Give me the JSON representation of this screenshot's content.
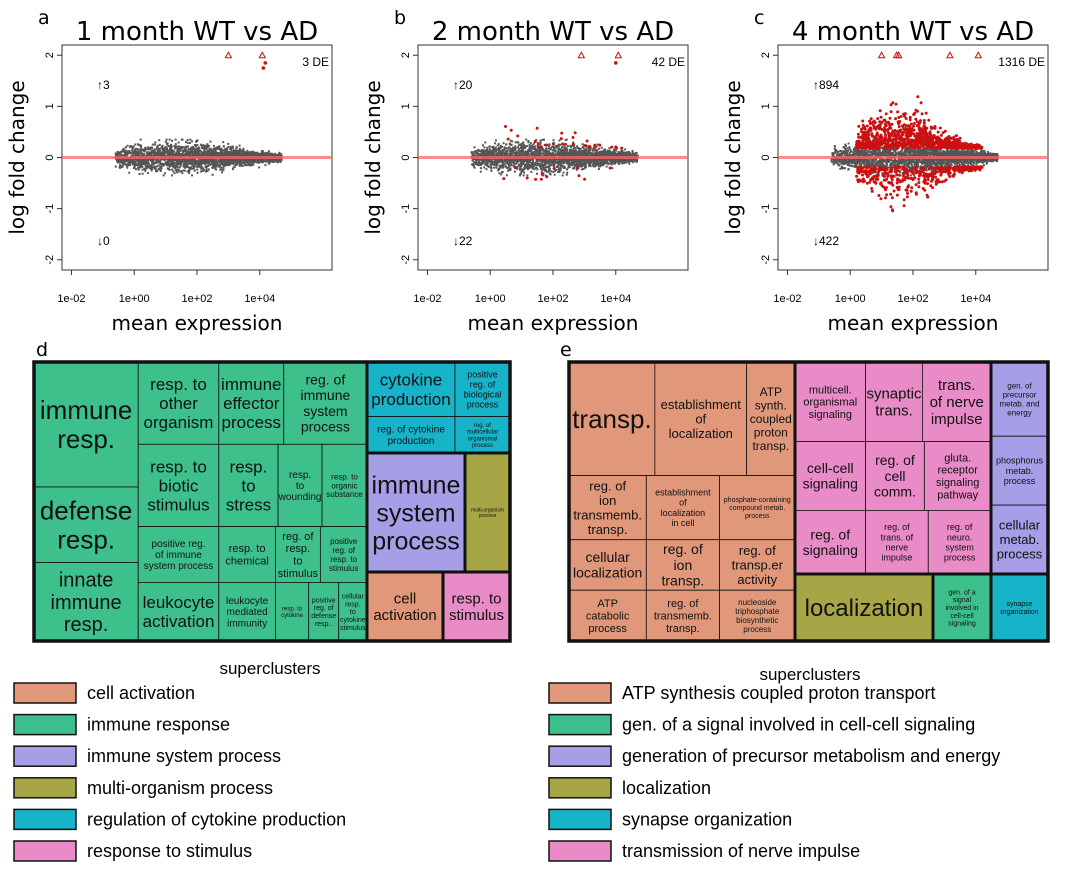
{
  "chart_data": [
    {
      "type": "scatter",
      "panel": "a",
      "title": "1 month WT vs AD",
      "xlabel": "mean expression",
      "ylabel": "log fold change",
      "x_scale": "log10",
      "xlim": [
        0.005,
        2000000
      ],
      "ylim": [
        -2.2,
        2.2
      ],
      "x_ticks": [
        0.01,
        1,
        100,
        10000
      ],
      "x_tick_labels": [
        "1e-02",
        "1e+00",
        "1e+02",
        "1e+04"
      ],
      "y_ticks": [
        -2,
        -1,
        0,
        1,
        2
      ],
      "y_tick_labels": [
        "-2",
        "-1",
        "0",
        "1",
        "2"
      ],
      "de_count_label": "3 DE",
      "up_label": "↑3",
      "down_label": "↓0",
      "de_points": [
        {
          "x": 1000,
          "y": 2.0,
          "marker": "triangle"
        },
        {
          "x": 12000,
          "y": 2.0,
          "marker": "triangle"
        },
        {
          "x": 13000,
          "y": 1.75
        },
        {
          "x": 15000,
          "y": 1.85
        }
      ],
      "spread": 0.28,
      "de_cloud": 0,
      "colors": {
        "ns": "#555555",
        "de": "#cc1111",
        "baseline": "#ff6666"
      }
    },
    {
      "type": "scatter",
      "panel": "b",
      "title": "2 month WT vs AD",
      "xlabel": "mean expression",
      "ylabel": "log fold change",
      "x_scale": "log10",
      "xlim": [
        0.005,
        2000000
      ],
      "ylim": [
        -2.2,
        2.2
      ],
      "x_ticks": [
        0.01,
        1,
        100,
        10000
      ],
      "x_tick_labels": [
        "1e-02",
        "1e+00",
        "1e+02",
        "1e+04"
      ],
      "y_ticks": [
        -2,
        -1,
        0,
        1,
        2
      ],
      "y_tick_labels": [
        "-2",
        "-1",
        "0",
        "1",
        "2"
      ],
      "de_count_label": "42 DE",
      "up_label": "↑20",
      "down_label": "↓22",
      "de_points": [
        {
          "x": 800,
          "y": 2.0,
          "marker": "triangle"
        },
        {
          "x": 12000,
          "y": 2.0,
          "marker": "triangle"
        },
        {
          "x": 10000,
          "y": 1.85
        }
      ],
      "spread": 0.3,
      "de_cloud": 40,
      "colors": {
        "ns": "#555555",
        "de": "#cc1111",
        "baseline": "#ff6666"
      }
    },
    {
      "type": "scatter",
      "panel": "c",
      "title": "4 month WT vs AD",
      "xlabel": "mean expression",
      "ylabel": "log fold change",
      "x_scale": "log10",
      "xlim": [
        0.005,
        2000000
      ],
      "ylim": [
        -2.2,
        2.2
      ],
      "x_ticks": [
        0.01,
        1,
        100,
        10000
      ],
      "x_tick_labels": [
        "1e-02",
        "1e+00",
        "1e+02",
        "1e+04"
      ],
      "y_ticks": [
        -2,
        -1,
        0,
        1,
        2
      ],
      "y_tick_labels": [
        "-2",
        "-1",
        "0",
        "1",
        "2"
      ],
      "de_count_label": "1316 DE",
      "up_label": "↑894",
      "down_label": "↓422",
      "de_points": [
        {
          "x": 10,
          "y": 2.0,
          "marker": "triangle"
        },
        {
          "x": 30,
          "y": 2.0,
          "marker": "triangle"
        },
        {
          "x": 35,
          "y": 2.0,
          "marker": "triangle"
        },
        {
          "x": 1500,
          "y": 2.0,
          "marker": "triangle"
        },
        {
          "x": 12000,
          "y": 2.0,
          "marker": "triangle"
        }
      ],
      "spread": 0.3,
      "de_cloud": 1300,
      "colors": {
        "ns": "#555555",
        "de": "#cc1111",
        "baseline": "#ff6666"
      }
    },
    {
      "type": "treemap",
      "panel": "d",
      "legend_title": "superclusters",
      "legend": [
        {
          "label": "cell activation",
          "color": "#e1987a"
        },
        {
          "label": "immune response",
          "color": "#3ec08c"
        },
        {
          "label": "immune system process",
          "color": "#a79ee8"
        },
        {
          "label": "multi-organism process",
          "color": "#a6a646"
        },
        {
          "label": "regulation of cytokine production",
          "color": "#17b3c9"
        },
        {
          "label": "response to stimulus",
          "color": "#e98bc7"
        }
      ],
      "tiles": [
        {
          "label": "immune resp.",
          "cluster": 1,
          "u": [
            0.0,
            0.0,
            0.313,
            0.448
          ],
          "fs": 26
        },
        {
          "label": "defense resp.",
          "cluster": 1,
          "u": [
            0.0,
            0.448,
            0.313,
            0.719
          ],
          "fs": 26
        },
        {
          "label": "innate immune resp.",
          "cluster": 1,
          "u": [
            0.0,
            0.719,
            0.313,
            1.0
          ],
          "fs": 20
        },
        {
          "label": "resp. to other organism",
          "cluster": 1,
          "u": [
            0.313,
            0.0,
            0.555,
            0.295
          ],
          "fs": 17
        },
        {
          "label": "immune effector process",
          "cluster": 1,
          "u": [
            0.555,
            0.0,
            0.75,
            0.295
          ],
          "fs": 17
        },
        {
          "label": "reg. of immune system process",
          "cluster": 1,
          "u": [
            0.75,
            0.0,
            1.0,
            0.295
          ],
          "fs": 14
        },
        {
          "label": "resp. to biotic stimulus",
          "cluster": 1,
          "u": [
            0.313,
            0.295,
            0.555,
            0.59
          ],
          "fs": 17
        },
        {
          "label": "resp. to stress",
          "cluster": 1,
          "u": [
            0.555,
            0.295,
            0.733,
            0.59
          ],
          "fs": 17
        },
        {
          "label": "resp. to wounding",
          "cluster": 1,
          "u": [
            0.733,
            0.295,
            0.865,
            0.59
          ],
          "fs": 10
        },
        {
          "label": "resp. to organic substance",
          "cluster": 1,
          "u": [
            0.865,
            0.295,
            1.0,
            0.59
          ],
          "fs": 8
        },
        {
          "label": "positive reg. of immune system process",
          "cluster": 1,
          "u": [
            0.313,
            0.59,
            0.555,
            0.79
          ],
          "fs": 10
        },
        {
          "label": "leukocyte activation",
          "cluster": 1,
          "u": [
            0.313,
            0.79,
            0.555,
            1.0
          ],
          "fs": 17
        },
        {
          "label": "resp. to chemical",
          "cluster": 1,
          "u": [
            0.555,
            0.59,
            0.725,
            0.79
          ],
          "fs": 11
        },
        {
          "label": "reg. of resp. to stimulus",
          "cluster": 1,
          "u": [
            0.725,
            0.59,
            0.86,
            0.79
          ],
          "fs": 11
        },
        {
          "label": "positive reg. of resp. to stimulus",
          "cluster": 1,
          "u": [
            0.86,
            0.59,
            1.0,
            0.79
          ],
          "fs": 8
        },
        {
          "label": "leukocyte mediated immunity",
          "cluster": 1,
          "u": [
            0.555,
            0.79,
            0.725,
            1.0
          ],
          "fs": 10
        },
        {
          "label": "resp. to cytokine",
          "cluster": 1,
          "u": [
            0.725,
            0.79,
            0.825,
            1.0
          ],
          "fs": 6
        },
        {
          "label": "positive reg. of defense resp..",
          "cluster": 1,
          "u": [
            0.825,
            0.79,
            0.915,
            1.0
          ],
          "fs": 7
        },
        {
          "label": "cellular resp. to cytokine stimulus",
          "cluster": 1,
          "u": [
            0.915,
            0.79,
            1.0,
            1.0
          ],
          "fs": 7
        },
        {
          "label": "cytokine production",
          "cluster": 4,
          "u": [
            0.0,
            0.0,
            0.615,
            0.6
          ],
          "fs": 17
        },
        {
          "label": "positive reg. of biological process",
          "cluster": 4,
          "u": [
            0.615,
            0.0,
            1.0,
            0.6
          ],
          "fs": 9
        },
        {
          "label": "reg. of cytokine production",
          "cluster": 4,
          "u": [
            0.0,
            0.6,
            0.615,
            1.0
          ],
          "fs": 10
        },
        {
          "label": "reg. of multicellular organismal process",
          "cluster": 4,
          "u": [
            0.615,
            0.6,
            1.0,
            1.0
          ],
          "fs": 6
        },
        {
          "label": "cell activation",
          "cluster": 0,
          "u": [
            0.0,
            0.0,
            1.0,
            1.0
          ],
          "fs": 15
        },
        {
          "label": "resp. to stimulus",
          "cluster": 5,
          "u": [
            0.0,
            0.0,
            1.0,
            1.0
          ],
          "fs": 15
        },
        {
          "label": "immune system process",
          "cluster": 2,
          "u": [
            0.0,
            0.0,
            1.0,
            1.0
          ],
          "fs": 25
        },
        {
          "label": "multi-organism process",
          "cluster": 3,
          "u": [
            0.0,
            0.0,
            1.0,
            1.0
          ],
          "fs": 5
        }
      ]
    },
    {
      "type": "treemap",
      "panel": "e",
      "legend_title": "superclusters",
      "legend": [
        {
          "label": "ATP synthesis coupled proton transport",
          "color": "#e1987a"
        },
        {
          "label": "gen. of a signal involved in cell-cell signaling",
          "color": "#3ec08c"
        },
        {
          "label": "generation of precursor metabolism and energy",
          "color": "#a79ee8"
        },
        {
          "label": "localization",
          "color": "#a6a646"
        },
        {
          "label": "synapse organization",
          "color": "#17b3c9"
        },
        {
          "label": "transmission of nerve impulse",
          "color": "#e98bc7"
        }
      ],
      "tiles": [
        {
          "label": "transp.",
          "cluster": 0,
          "u": [
            0.0,
            0.0,
            0.38,
            0.407
          ],
          "fs": 26
        },
        {
          "label": "establishment of localization",
          "cluster": 0,
          "u": [
            0.38,
            0.0,
            0.786,
            0.407
          ],
          "fs": 13
        },
        {
          "label": "ATP synth. coupled proton transp.",
          "cluster": 0,
          "u": [
            0.786,
            0.0,
            1.0,
            0.407
          ],
          "fs": 12
        },
        {
          "label": "reg. of ion transmemb. transp.",
          "cluster": 0,
          "u": [
            0.0,
            0.407,
            0.342,
            0.637
          ],
          "fs": 13
        },
        {
          "label": "establishment of localization in cell",
          "cluster": 0,
          "u": [
            0.342,
            0.407,
            0.666,
            0.637
          ],
          "fs": 9
        },
        {
          "label": "phosphate-containing compound metab. process",
          "cluster": 0,
          "u": [
            0.666,
            0.407,
            1.0,
            0.637
          ],
          "fs": 7
        },
        {
          "label": "cellular localization",
          "cluster": 0,
          "u": [
            0.0,
            0.637,
            0.342,
            0.818
          ],
          "fs": 14
        },
        {
          "label": "reg. of ion transp.",
          "cluster": 0,
          "u": [
            0.342,
            0.637,
            0.666,
            0.818
          ],
          "fs": 14
        },
        {
          "label": "reg. of transp.er activity",
          "cluster": 0,
          "u": [
            0.666,
            0.637,
            1.0,
            0.818
          ],
          "fs": 13
        },
        {
          "label": "ATP catabolic process",
          "cluster": 0,
          "u": [
            0.0,
            0.818,
            0.342,
            1.0
          ],
          "fs": 11
        },
        {
          "label": "reg. of transmemb. transp.",
          "cluster": 0,
          "u": [
            0.342,
            0.818,
            0.666,
            1.0
          ],
          "fs": 11
        },
        {
          "label": "nucleoside triphosphate biosynthetic process",
          "cluster": 0,
          "u": [
            0.666,
            0.818,
            1.0,
            1.0
          ],
          "fs": 8
        },
        {
          "label": "multicell. organismal signaling",
          "cluster": 5,
          "u": [
            0.0,
            0.0,
            0.36,
            0.375
          ],
          "fs": 11
        },
        {
          "label": "synaptic trans.",
          "cluster": 5,
          "u": [
            0.36,
            0.0,
            0.65,
            0.375
          ],
          "fs": 15
        },
        {
          "label": "trans. of nerve impulse",
          "cluster": 5,
          "u": [
            0.65,
            0.0,
            1.0,
            0.375
          ],
          "fs": 15
        },
        {
          "label": "cell-cell signaling",
          "cluster": 5,
          "u": [
            0.0,
            0.375,
            0.36,
            0.7
          ],
          "fs": 14
        },
        {
          "label": "reg. of cell comm.",
          "cluster": 5,
          "u": [
            0.36,
            0.375,
            0.66,
            0.7
          ],
          "fs": 14
        },
        {
          "label": "gluta. receptor signaling pathway",
          "cluster": 5,
          "u": [
            0.66,
            0.375,
            1.0,
            0.7
          ],
          "fs": 11
        },
        {
          "label": "reg. of signaling",
          "cluster": 5,
          "u": [
            0.0,
            0.7,
            0.36,
            1.0
          ],
          "fs": 14
        },
        {
          "label": "reg. of trans. of nerve impulse",
          "cluster": 5,
          "u": [
            0.36,
            0.7,
            0.68,
            1.0
          ],
          "fs": 9
        },
        {
          "label": "reg. of neuro. system process",
          "cluster": 5,
          "u": [
            0.68,
            0.7,
            1.0,
            1.0
          ],
          "fs": 9
        },
        {
          "label": "gen. of precursor metab. and energy",
          "cluster": 2,
          "u": [
            0.0,
            0.0,
            1.0,
            0.35
          ],
          "fs": 8
        },
        {
          "label": "phosphorus metab. process",
          "cluster": 2,
          "u": [
            0.0,
            0.35,
            1.0,
            0.675
          ],
          "fs": 9
        },
        {
          "label": "cellular metab. process",
          "cluster": 2,
          "u": [
            0.0,
            0.675,
            1.0,
            1.0
          ],
          "fs": 13
        },
        {
          "label": "localization",
          "cluster": 3,
          "u": [
            0.0,
            0.0,
            1.0,
            1.0
          ],
          "fs": 24
        },
        {
          "label": "gen. of a signal involved in cell-cell signaling",
          "cluster": 1,
          "u": [
            0.0,
            0.0,
            1.0,
            1.0
          ],
          "fs": 7
        },
        {
          "label": "synapse organization",
          "cluster": 4,
          "u": [
            0.0,
            0.0,
            1.0,
            1.0
          ],
          "fs": 7
        }
      ]
    }
  ]
}
